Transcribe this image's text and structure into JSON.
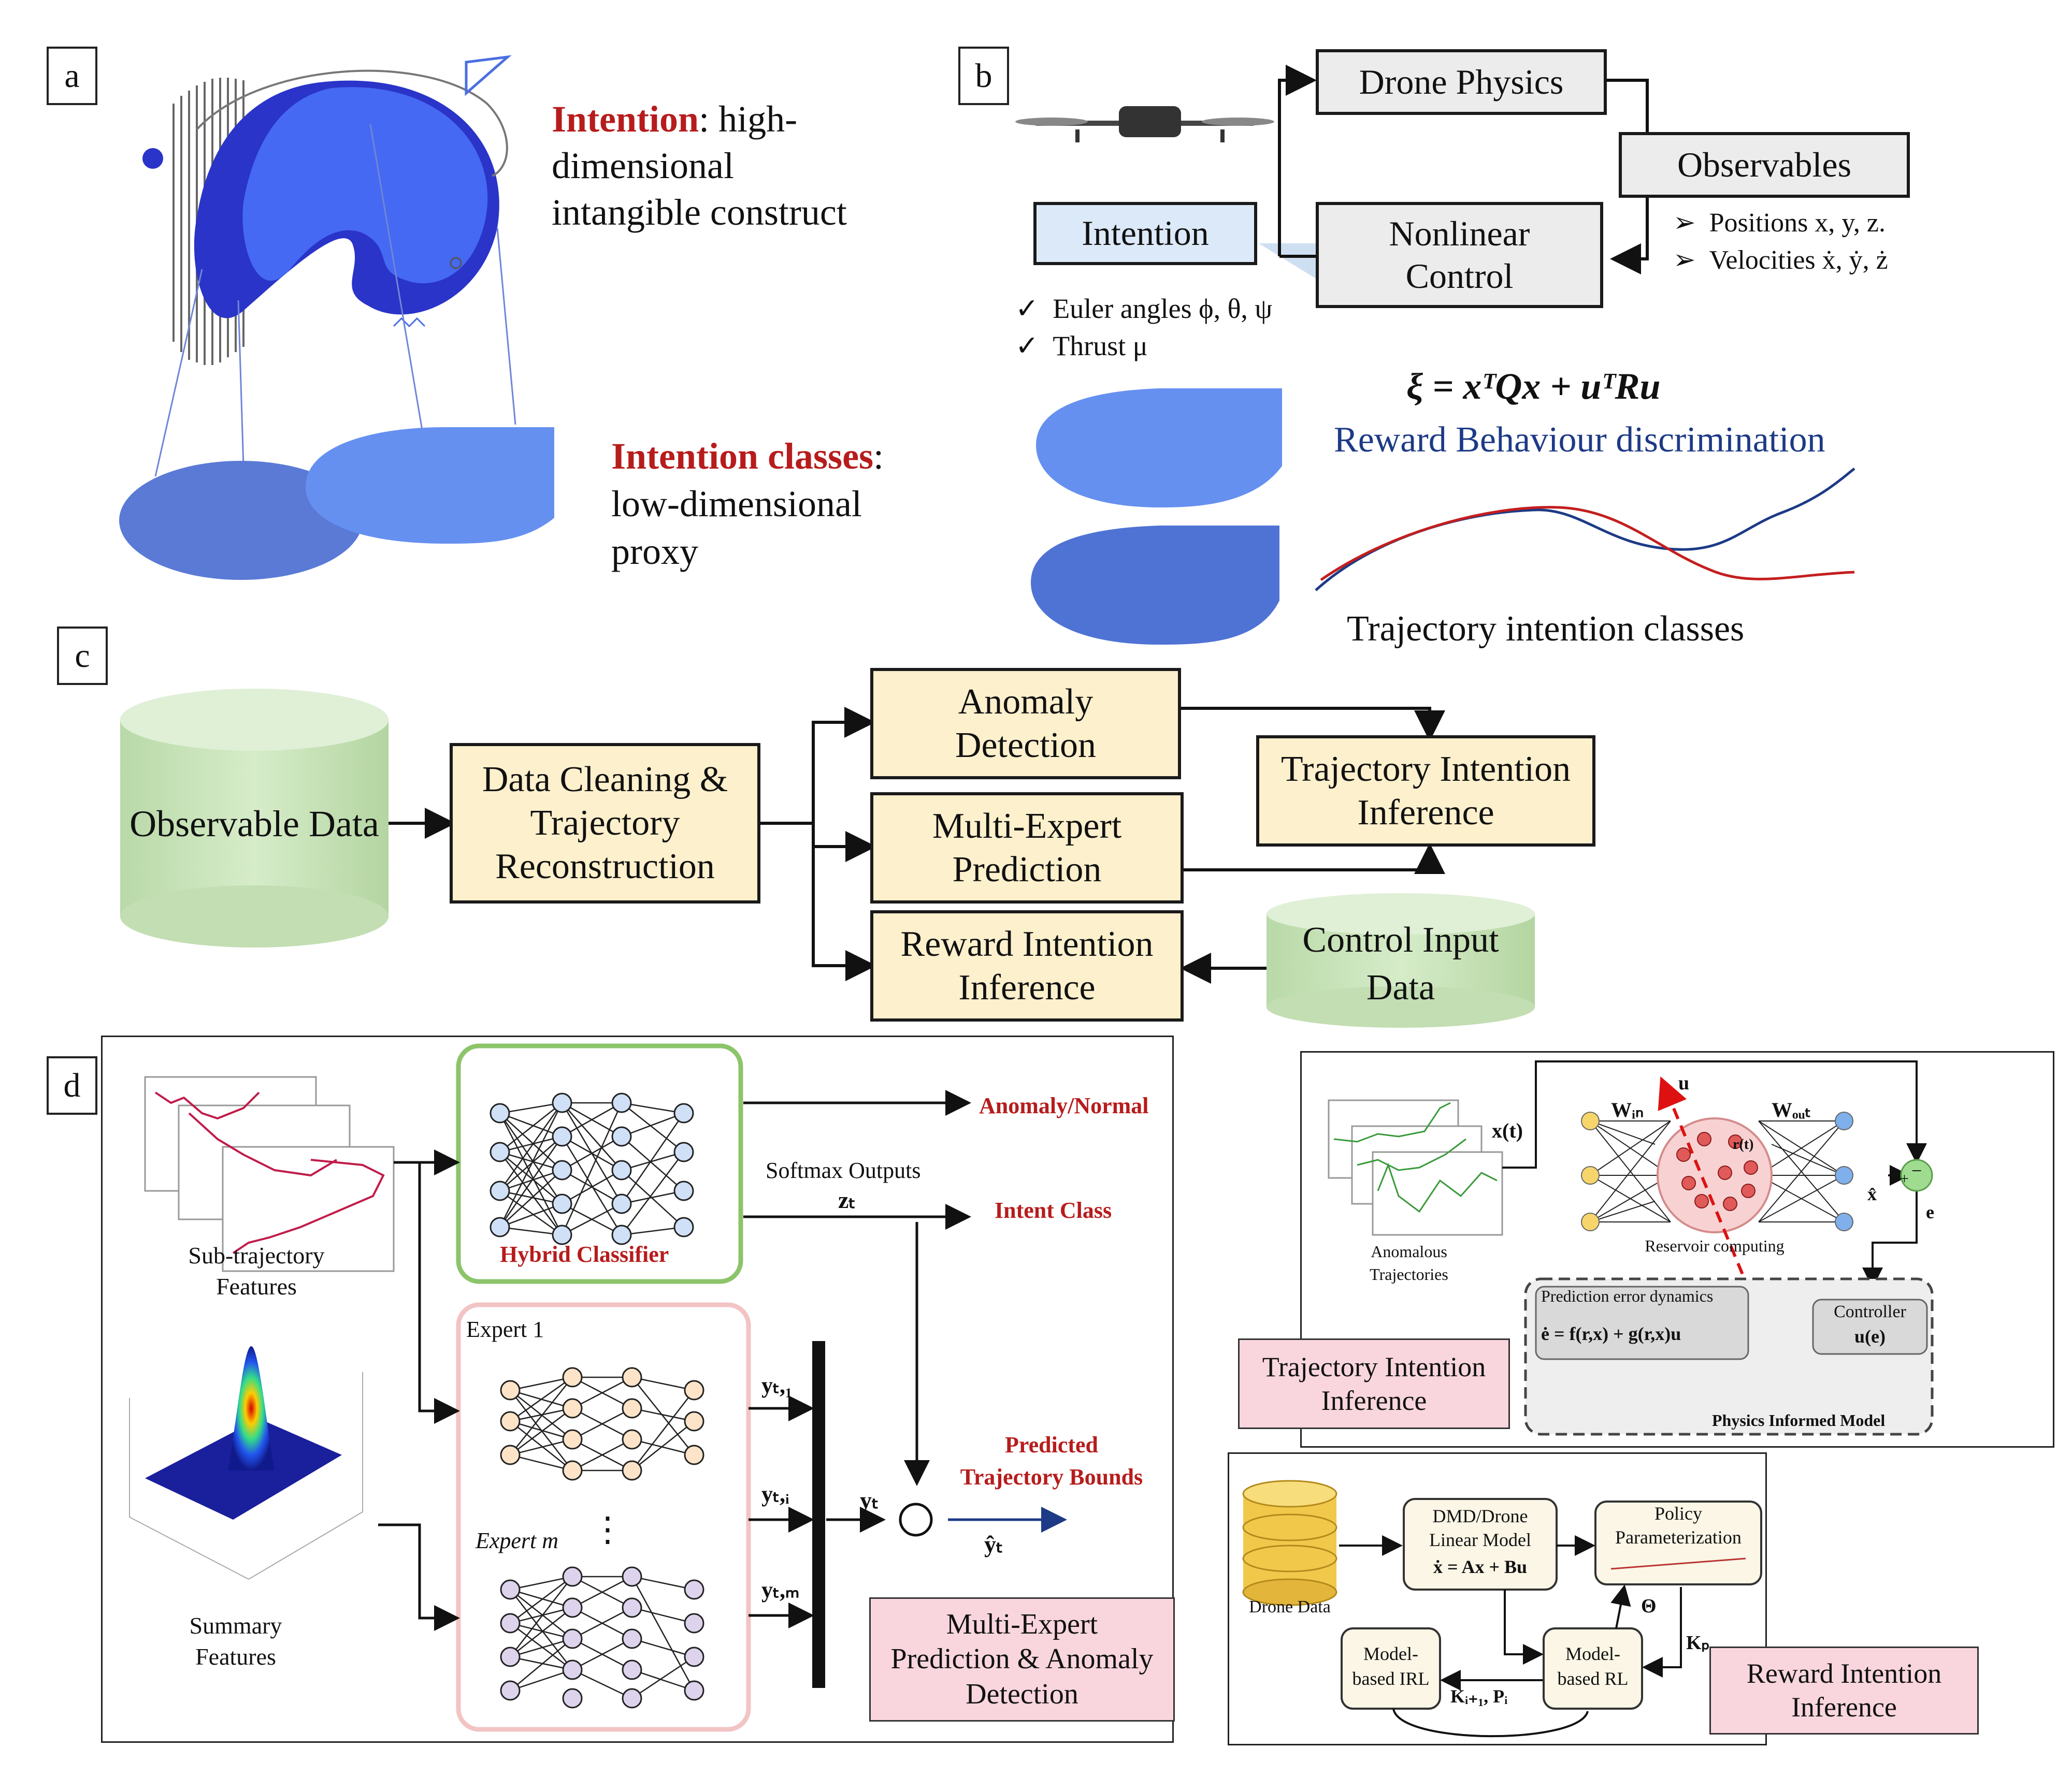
{
  "panels": {
    "a": "a",
    "b": "b",
    "c": "c",
    "d": "d"
  },
  "a": {
    "intention_word": "Intention",
    "intention_rest": ": high-",
    "intention_line2": "dimensional",
    "intention_line3": "intangible construct",
    "classes_word": "Intention classes",
    "classes_rest": ":",
    "classes_line2": "low-dimensional",
    "classes_line3": "proxy"
  },
  "b": {
    "drone_physics": "Drone Physics",
    "observables": "Observables",
    "intention": "Intention",
    "nonlinear_control": "Nonlinear Control",
    "obs_item1": "Positions x, y, z.",
    "obs_item2": "Velocities ẋ, ẏ, ż",
    "ctrl_item1": "Euler angles ϕ, θ, ψ",
    "ctrl_item2": "Thrust μ",
    "equation": "ξ = xᵀQx + uᵀRu",
    "reward_text": "Reward Behaviour discrimination",
    "traj_classes": "Trajectory intention classes",
    "bullet_arrow": "➢",
    "check": "✓"
  },
  "c": {
    "observable_data": "Observable Data",
    "cleaning": "Data Cleaning & Trajectory Reconstruction",
    "anomaly": "Anomaly Detection",
    "multi_expert": "Multi-Expert Prediction",
    "reward_inference": "Reward Intention Inference",
    "traj_inference": "Trajectory Intention Inference",
    "control_input": "Control Input Data"
  },
  "d": {
    "sub_traj": "Sub-trajectory Features",
    "summary": "Summary Features",
    "hybrid": "Hybrid Classifier",
    "softmax": "Softmax Outputs",
    "zt": "zₜ",
    "anomaly_normal": "Anomaly/Normal",
    "intent_class": "Intent Class",
    "expert1": "Expert 1",
    "expertm": "Expert m",
    "vdots": "⋮",
    "yt1": "yₜ,₁",
    "yti": "yₜ,ᵢ",
    "ytm": "yₜ,ₘ",
    "yt": "yₜ",
    "odot": "⊙",
    "yhat": "ŷₜ",
    "predicted": "Predicted",
    "bounds": "Trajectory Bounds",
    "mep_box": "Multi-Expert Prediction & Anomaly Detection"
  },
  "right_top": {
    "anomalous": "Anomalous Trajectories",
    "xt": "x(t)",
    "win": "Wᵢₙ",
    "wout": "Wₒᵤₜ",
    "u": "u",
    "rt": "r(t)",
    "reservoir": "Reservoir computing",
    "xhat": "x̂",
    "minus": "−",
    "plus": "+",
    "e": "e",
    "ped_title": "Prediction error dynamics",
    "ped_eq": "ė = f(r,x) + g(r,x)u",
    "controller": "Controller",
    "controller_eq": "u(e)",
    "physics": "Physics Informed Model",
    "tii_box": "Trajectory Intention Inference"
  },
  "right_bottom": {
    "drone_data": "Drone Data",
    "dmd": "DMD/Drone Linear Model",
    "dmd_eq": "ẋ = Ax + Bu",
    "policy": "Policy Parameterization",
    "theta": "Θ",
    "kp": "Kₚ",
    "mbrl": "Model-based RL",
    "mbirl": "Model-based IRL",
    "kip": "Kᵢ₊₁, Pᵢ",
    "rii_box": "Reward Intention Inference"
  },
  "colors": {
    "accent_red": "#b71c1c",
    "navy": "#1d3a86",
    "blob_blue": "#4a6fe0",
    "green_cyl": "#cfe6c2",
    "yellow_box": "#fdf0cc",
    "pink_box": "#f9d6de"
  }
}
